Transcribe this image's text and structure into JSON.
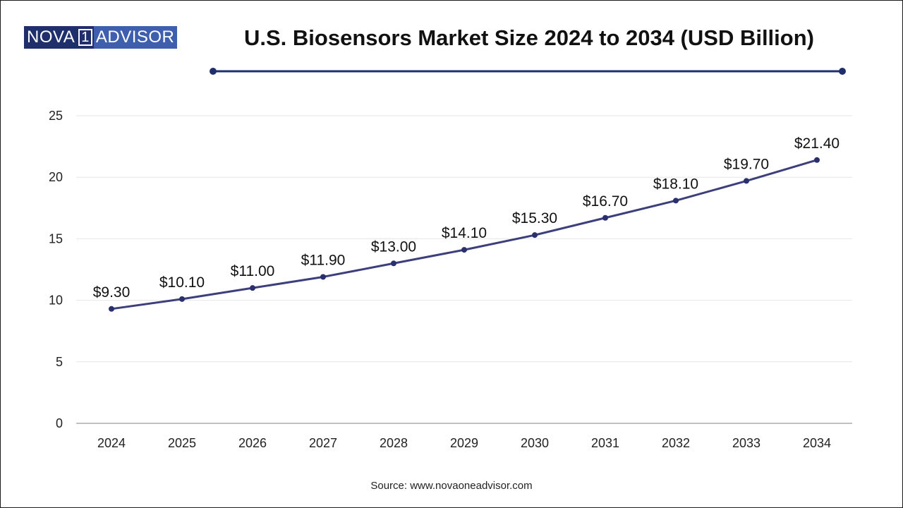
{
  "header": {
    "logo_part_a": "NOVA",
    "logo_part_num": "1",
    "logo_part_b": "ADVISOR"
  },
  "footer": {
    "source": "Source: www.novaoneadvisor.com"
  },
  "colors": {
    "line": "#3d3f7d",
    "marker": "#2a2f6e",
    "rule": "#1e2f6b",
    "grid": "#e6e6e6",
    "axis": "#9a9a9a"
  },
  "chart_data": {
    "type": "line",
    "title": "U.S. Biosensors Market Size 2024 to 2034 (USD Billion)",
    "xlabel": "",
    "ylabel": "",
    "categories": [
      "2024",
      "2025",
      "2026",
      "2027",
      "2028",
      "2029",
      "2030",
      "2031",
      "2032",
      "2033",
      "2034"
    ],
    "values": [
      9.3,
      10.1,
      11.0,
      11.9,
      13.0,
      14.1,
      15.3,
      16.7,
      18.1,
      19.7,
      21.4
    ],
    "data_labels": [
      "$9.30",
      "$10.10",
      "$11.00",
      "$11.90",
      "$13.00",
      "$14.10",
      "$15.30",
      "$16.70",
      "$18.10",
      "$19.70",
      "$21.40"
    ],
    "ylim": [
      0,
      25
    ],
    "yticks": [
      0,
      5,
      10,
      15,
      20,
      25
    ],
    "grid": true,
    "legend": "none"
  }
}
